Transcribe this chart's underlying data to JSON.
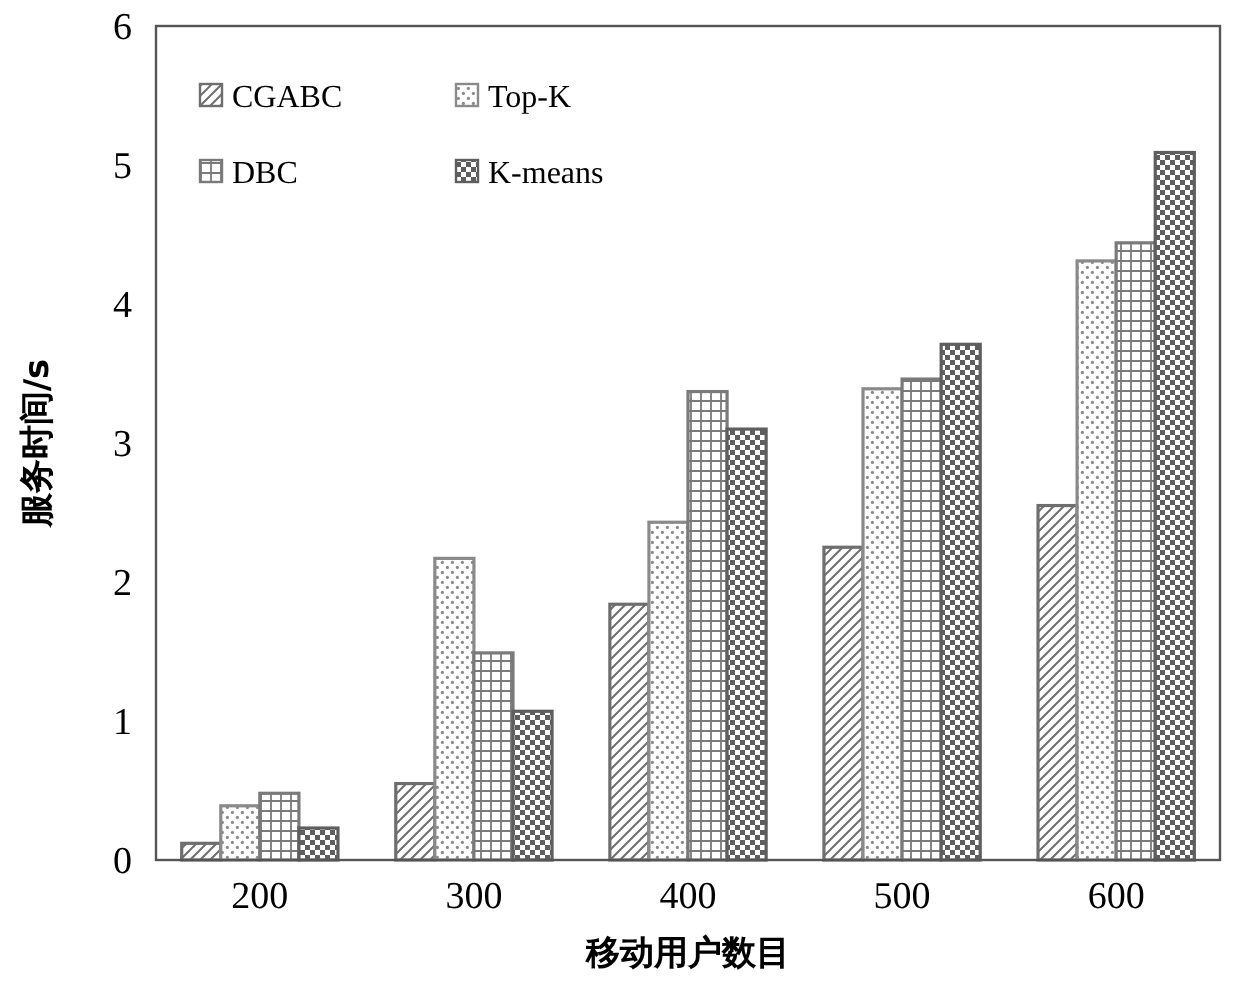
{
  "chart_data": {
    "type": "bar",
    "xlabel": "移动用户数目",
    "ylabel": "服务时间/s",
    "categories": [
      "200",
      "300",
      "400",
      "500",
      "600"
    ],
    "series": [
      {
        "name": "CGABC",
        "color": "#6e6e6e",
        "values": [
          0.12,
          0.55,
          1.84,
          2.25,
          2.55
        ]
      },
      {
        "name": "Top-K",
        "color": "#8a8a8a",
        "values": [
          0.39,
          2.17,
          2.43,
          3.39,
          4.31
        ]
      },
      {
        "name": "DBC",
        "color": "#7a7a7a",
        "values": [
          0.48,
          1.49,
          3.37,
          3.46,
          4.44
        ]
      },
      {
        "name": "K-means",
        "color": "#5e5e5e",
        "values": [
          0.23,
          1.07,
          3.1,
          3.71,
          5.09
        ]
      }
    ],
    "ylim": [
      0,
      6
    ],
    "yticks": [
      0,
      1,
      2,
      3,
      4,
      5,
      6
    ],
    "grid": false,
    "legend": "top left"
  }
}
